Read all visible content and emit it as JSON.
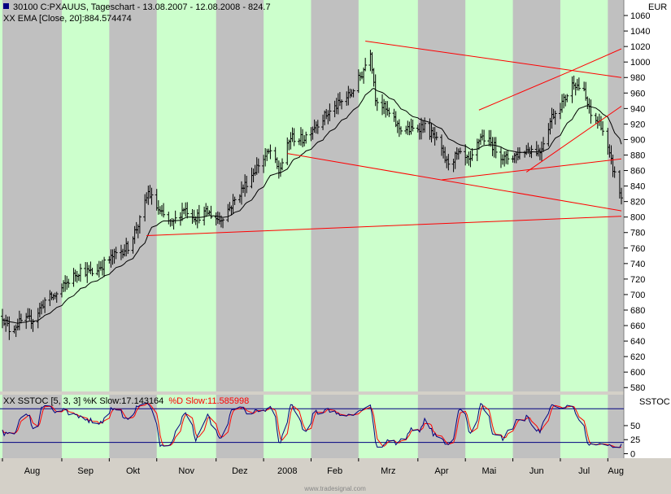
{
  "header": {
    "title": "30100  C:PXAUUS, Tageschart - 13.08.2007 - 12.08.2008 - 824.7",
    "ema_label": "XX EMA [Close, 20]:884.574474",
    "stoch_prefix": "XX SSTOC [5, 3, 3] %K Slow:17.143164",
    "stoch_d": "%D Slow:11.585998",
    "currency": "EUR",
    "stoch_name": "SSTOC",
    "footer": "www.tradesignal.com"
  },
  "colors": {
    "grid": "#000080",
    "bars": "#000000",
    "ema": "#000000",
    "trendlines": "#ff0000",
    "k_line": "#000080",
    "d_line": "#ff0000",
    "band_green": "#ccffcc",
    "band_gray": "#c0c0c0"
  },
  "chart_data": [
    {
      "type": "ohlc",
      "ylim": [
        575,
        1080
      ],
      "yticks": [
        580,
        600,
        620,
        640,
        660,
        680,
        700,
        720,
        740,
        760,
        780,
        800,
        820,
        840,
        860,
        880,
        900,
        920,
        940,
        960,
        980,
        1000,
        1020,
        1040,
        1060
      ],
      "x_range": [
        "2007-08-13",
        "2008-08-12"
      ],
      "month_labels": [
        {
          "label": "Aug",
          "date": "2007-08-13"
        },
        {
          "label": "Sep",
          "date": "2007-09-17"
        },
        {
          "label": "Okt",
          "date": "2007-10-15"
        },
        {
          "label": "Nov",
          "date": "2007-11-12"
        },
        {
          "label": "Dez",
          "date": "2007-12-17"
        },
        {
          "label": "2008",
          "date": "2008-01-14"
        },
        {
          "label": "Feb",
          "date": "2008-02-11"
        },
        {
          "label": "Mrz",
          "date": "2008-03-10"
        },
        {
          "label": "Apr",
          "date": "2008-04-14"
        },
        {
          "label": "Mai",
          "date": "2008-05-12"
        },
        {
          "label": "Jun",
          "date": "2008-06-09"
        },
        {
          "label": "Jul",
          "date": "2008-07-07"
        },
        {
          "label": "Aug",
          "date": "2008-08-04"
        }
      ],
      "close_anchors": [
        [
          "2007-08-13",
          672
        ],
        [
          "2007-08-17",
          655
        ],
        [
          "2007-08-24",
          665
        ],
        [
          "2007-08-31",
          668
        ],
        [
          "2007-09-07",
          692
        ],
        [
          "2007-09-14",
          700
        ],
        [
          "2007-09-21",
          718
        ],
        [
          "2007-09-28",
          732
        ],
        [
          "2007-10-05",
          728
        ],
        [
          "2007-10-12",
          740
        ],
        [
          "2007-10-19",
          752
        ],
        [
          "2007-10-26",
          762
        ],
        [
          "2007-11-02",
          795
        ],
        [
          "2007-11-07",
          832
        ],
        [
          "2007-11-14",
          805
        ],
        [
          "2007-11-21",
          790
        ],
        [
          "2007-11-28",
          812
        ],
        [
          "2007-12-05",
          800
        ],
        [
          "2007-12-12",
          806
        ],
        [
          "2007-12-19",
          796
        ],
        [
          "2007-12-27",
          818
        ],
        [
          "2008-01-04",
          845
        ],
        [
          "2008-01-11",
          868
        ],
        [
          "2008-01-18",
          885
        ],
        [
          "2008-01-23",
          858
        ],
        [
          "2008-01-30",
          903
        ],
        [
          "2008-02-06",
          900
        ],
        [
          "2008-02-13",
          918
        ],
        [
          "2008-02-20",
          932
        ],
        [
          "2008-02-27",
          945
        ],
        [
          "2008-03-05",
          958
        ],
        [
          "2008-03-12",
          985
        ],
        [
          "2008-03-17",
          1015
        ],
        [
          "2008-03-20",
          955
        ],
        [
          "2008-03-27",
          935
        ],
        [
          "2008-04-03",
          915
        ],
        [
          "2008-04-10",
          912
        ],
        [
          "2008-04-17",
          918
        ],
        [
          "2008-04-24",
          902
        ],
        [
          "2008-05-01",
          870
        ],
        [
          "2008-05-08",
          880
        ],
        [
          "2008-05-15",
          870
        ],
        [
          "2008-05-21",
          905
        ],
        [
          "2008-05-28",
          893
        ],
        [
          "2008-06-04",
          875
        ],
        [
          "2008-06-11",
          880
        ],
        [
          "2008-06-18",
          888
        ],
        [
          "2008-06-25",
          885
        ],
        [
          "2008-07-02",
          930
        ],
        [
          "2008-07-09",
          950
        ],
        [
          "2008-07-15",
          975
        ],
        [
          "2008-07-21",
          960
        ],
        [
          "2008-07-25",
          930
        ],
        [
          "2008-07-31",
          920
        ],
        [
          "2008-08-05",
          878
        ],
        [
          "2008-08-08",
          855
        ],
        [
          "2008-08-12",
          824.7
        ]
      ],
      "trendlines": [
        {
          "from": [
            "2007-11-06",
            776
          ],
          "to": [
            "2008-08-12",
            801
          ]
        },
        {
          "from": [
            "2008-03-14",
            1027
          ],
          "to": [
            "2008-08-12",
            980
          ]
        },
        {
          "from": [
            "2008-01-28",
            882
          ],
          "to": [
            "2008-08-12",
            808
          ]
        },
        {
          "from": [
            "2008-04-28",
            848
          ],
          "to": [
            "2008-08-12",
            875
          ]
        },
        {
          "from": [
            "2008-05-20",
            938
          ],
          "to": [
            "2008-07-15",
            990
          ]
        },
        {
          "from": [
            "2008-07-15",
            990
          ],
          "to": [
            "2008-08-12",
            1017
          ]
        },
        {
          "from": [
            "2008-06-17",
            858
          ],
          "to": [
            "2008-08-12",
            943
          ]
        }
      ],
      "ema_period": 20,
      "ema_last": 884.574474,
      "last_close": 824.7
    },
    {
      "type": "line",
      "name": "SSTOC [5, 3, 3]",
      "ylim": [
        -8,
        105
      ],
      "yticks": [
        0,
        25,
        50
      ],
      "levels": [
        20,
        80
      ],
      "k_last": 17.143164,
      "d_last": 11.585998
    }
  ]
}
